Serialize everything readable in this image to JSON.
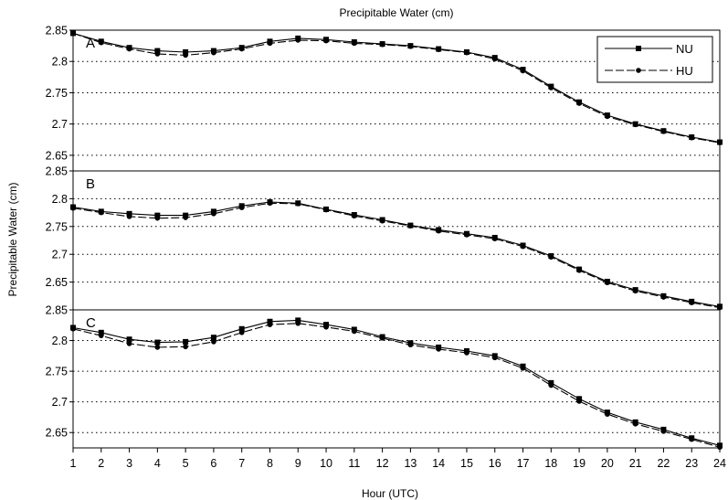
{
  "chart_data": {
    "type": "line",
    "title": "Precipitable Water (cm)",
    "xlabel": "Hour (UTC)",
    "ylabel": "Precipitable Water (cm)",
    "x": [
      1,
      2,
      3,
      4,
      5,
      6,
      7,
      8,
      9,
      10,
      11,
      12,
      13,
      14,
      15,
      16,
      17,
      18,
      19,
      20,
      21,
      22,
      23,
      24
    ],
    "grid": "horizontal-dotted",
    "legend_position": "top-right",
    "legend": [
      {
        "name": "NU",
        "marker": "square",
        "dash": "solid",
        "color": "#000000"
      },
      {
        "name": "HU",
        "marker": "circle",
        "dash": "long-dash",
        "color": "#000000"
      }
    ],
    "panels": [
      {
        "label": "A",
        "ylim": [
          2.625,
          2.85
        ],
        "yticks": [
          "2.85",
          "2.8",
          "2.75",
          "2.7",
          "2.65"
        ],
        "series": [
          {
            "name": "NU",
            "values": [
              2.845,
              2.832,
              2.822,
              2.817,
              2.815,
              2.817,
              2.822,
              2.832,
              2.837,
              2.835,
              2.831,
              2.828,
              2.825,
              2.82,
              2.815,
              2.806,
              2.787,
              2.76,
              2.735,
              2.714,
              2.7,
              2.689,
              2.679,
              2.671
            ]
          },
          {
            "name": "HU",
            "values": [
              2.845,
              2.83,
              2.82,
              2.812,
              2.81,
              2.814,
              2.82,
              2.829,
              2.834,
              2.833,
              2.829,
              2.827,
              2.824,
              2.819,
              2.814,
              2.804,
              2.785,
              2.758,
              2.733,
              2.712,
              2.699,
              2.688,
              2.678,
              2.67
            ]
          }
        ]
      },
      {
        "label": "B",
        "ylim": [
          2.6,
          2.85
        ],
        "yticks": [
          "2.85",
          "2.8",
          "2.75",
          "2.7",
          "2.65"
        ],
        "series": [
          {
            "name": "NU",
            "values": [
              2.785,
              2.777,
              2.773,
              2.77,
              2.77,
              2.777,
              2.787,
              2.794,
              2.792,
              2.781,
              2.771,
              2.762,
              2.752,
              2.744,
              2.737,
              2.73,
              2.716,
              2.697,
              2.673,
              2.651,
              2.636,
              2.625,
              2.615,
              2.606
            ]
          },
          {
            "name": "HU",
            "values": [
              2.783,
              2.775,
              2.768,
              2.765,
              2.766,
              2.773,
              2.784,
              2.792,
              2.791,
              2.78,
              2.769,
              2.76,
              2.751,
              2.742,
              2.735,
              2.728,
              2.714,
              2.695,
              2.671,
              2.649,
              2.634,
              2.623,
              2.613,
              2.604
            ]
          }
        ]
      },
      {
        "label": "C",
        "ylim": [
          2.625,
          2.85
        ],
        "yticks": [
          "2.85",
          "2.8",
          "2.75",
          "2.7",
          "2.65"
        ],
        "series": [
          {
            "name": "NU",
            "values": [
              2.821,
              2.813,
              2.802,
              2.797,
              2.798,
              2.805,
              2.819,
              2.831,
              2.833,
              2.826,
              2.818,
              2.806,
              2.796,
              2.789,
              2.783,
              2.775,
              2.758,
              2.731,
              2.705,
              2.683,
              2.667,
              2.655,
              2.641,
              2.629
            ]
          },
          {
            "name": "HU",
            "values": [
              2.819,
              2.808,
              2.795,
              2.789,
              2.79,
              2.798,
              2.813,
              2.826,
              2.828,
              2.822,
              2.815,
              2.804,
              2.793,
              2.786,
              2.78,
              2.772,
              2.755,
              2.727,
              2.701,
              2.68,
              2.664,
              2.652,
              2.639,
              2.626
            ]
          }
        ]
      }
    ]
  }
}
